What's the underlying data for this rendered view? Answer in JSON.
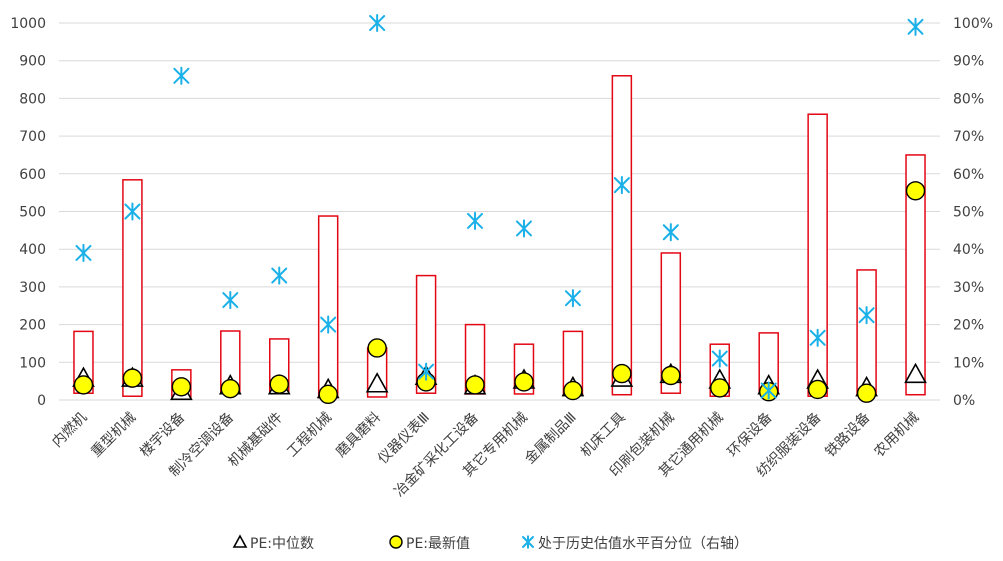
{
  "chart_data": {
    "type": "bar",
    "categories": [
      "内燃机",
      "重型机械",
      "楼宇设备",
      "制冷空调设备",
      "机械基础件",
      "工程机械",
      "磨具磨料",
      "仪器仪表Ⅲ",
      "冶金矿采化工设备",
      "其它专用机械",
      "金属制品Ⅲ",
      "机床工具",
      "印刷包装机械",
      "其它通用机械",
      "环保设备",
      "纺织服装设备",
      "铁路设备",
      "农用机械"
    ],
    "range_bars": {
      "low": [
        18,
        10,
        8,
        20,
        18,
        6,
        8,
        18,
        16,
        16,
        12,
        14,
        18,
        10,
        18,
        10,
        12,
        14
      ],
      "high": [
        182,
        584,
        80,
        183,
        162,
        488,
        138,
        330,
        200,
        148,
        182,
        860,
        390,
        148,
        178,
        758,
        345,
        650
      ],
      "colors": {
        "stroke": "#e30613",
        "fill": "#ffffff"
      }
    },
    "series": [
      {
        "name": "PE:中位数",
        "axis": "left",
        "marker": "triangle",
        "values": [
          55,
          55,
          20,
          35,
          35,
          25,
          40,
          60,
          35,
          50,
          30,
          55,
          65,
          50,
          35,
          50,
          30,
          65
        ]
      },
      {
        "name": "PE:最新值",
        "axis": "left",
        "marker": "circle",
        "values": [
          40,
          58,
          35,
          30,
          42,
          15,
          138,
          48,
          40,
          48,
          25,
          70,
          65,
          32,
          22,
          28,
          18,
          555
        ]
      },
      {
        "name": "处于历史估值水平百分位（右轴）",
        "axis": "right",
        "marker": "asterisk",
        "values": [
          39,
          50,
          86,
          26.5,
          33,
          20,
          100,
          7.5,
          47.5,
          45.5,
          27,
          57,
          44.5,
          11,
          2.5,
          16.5,
          22.5,
          99
        ]
      }
    ],
    "y_left": {
      "min": 0,
      "max": 1000,
      "ticks": [
        "0",
        "100",
        "200",
        "300",
        "400",
        "500",
        "600",
        "700",
        "800",
        "900",
        "1000"
      ]
    },
    "y_right": {
      "min": 0,
      "max": 100,
      "ticks": [
        "0%",
        "10%",
        "20%",
        "30%",
        "40%",
        "50%",
        "60%",
        "70%",
        "80%",
        "90%",
        "100%"
      ]
    },
    "grid": true,
    "legend_position": "bottom",
    "colors": {
      "triangle": "#000000",
      "circle_fill": "#ffff00",
      "circle_stroke": "#000000",
      "asterisk": "#1ab0e8",
      "grid": "#d9d9d9",
      "text": "#404040"
    },
    "title": "",
    "xlabel": "",
    "ylabel": ""
  }
}
